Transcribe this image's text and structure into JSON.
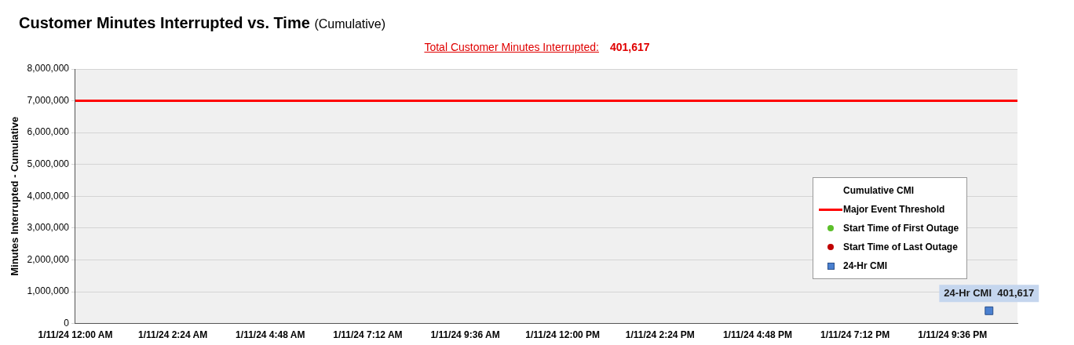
{
  "chart_data": {
    "type": "scatter",
    "title": "Customer Minutes Interrupted  vs. Time",
    "subtitle": "(Cumulative)",
    "annotations": [
      "Total Customer Minutes Interrupted:",
      "401,617"
    ],
    "ylabel": "Minutes Interrupted - Cumulative",
    "xlim": [
      "--01-11T00:00",
      "--01-11T23:12"
    ],
    "xticks": [
      {
        "value": "--01-11T00:00",
        "label": "1/11/24 12:00 AM"
      },
      {
        "value": "--01-11T02:24",
        "label": "1/11/24 2:24 AM"
      },
      {
        "value": "--01-11T04:48",
        "label": "1/11/24 4:48 AM"
      },
      {
        "value": "--01-11T07:12",
        "label": "1/11/24 7:12 AM"
      },
      {
        "value": "--01-11T09:36",
        "label": "1/11/24 9:36 AM"
      },
      {
        "value": "--01-11T12:00",
        "label": "1/11/24 12:00 PM"
      },
      {
        "value": "--01-11T14:24",
        "label": "1/11/24 2:24 PM"
      },
      {
        "value": "--01-11T16:48",
        "label": "1/11/24 4:48 PM"
      },
      {
        "value": "--01-11T19:12",
        "label": "1/11/24 7:12 PM"
      },
      {
        "value": "--01-11T21:36",
        "label": "1/11/24 9:36 PM"
      }
    ],
    "ylim": [
      0,
      8000000
    ],
    "yticks": [
      0,
      {
        "value": 1000000,
        "label": "1,000,000"
      },
      {
        "value": 2000000,
        "label": "2,000,000"
      },
      {
        "value": 3000000,
        "label": "3,000,000"
      },
      {
        "value": 4000000,
        "label": "4,000,000"
      },
      {
        "value": 5000000,
        "label": "5,000,000"
      },
      {
        "value": 6000000,
        "label": "6,000,000"
      },
      {
        "value": 7000000,
        "label": "7,000,000"
      },
      {
        "value": 8000000,
        "label": "8,000,000"
      }
    ],
    "grid": "y",
    "legend": "right",
    "series": [
      {
        "name": "Cumulative CMI",
        "type": "line"
      },
      {
        "name": "Major Event Threshold",
        "type": "line",
        "color": "#ff0000",
        "marker": "none",
        "x": [
          "--01-11T00:00",
          "--01-11T23:12"
        ],
        "values": [
          7000000,
          7000000
        ]
      },
      {
        "name": "Start Time of First Outage",
        "type": "scatter",
        "color": "#5cbf2a",
        "marker": "circle"
      },
      {
        "name": "Start Time of Last Outage",
        "type": "scatter",
        "color": "#c00000",
        "marker": "circle"
      },
      {
        "name": "24-Hr CMI",
        "type": "scatter",
        "color": "#4a80d0",
        "marker": "square",
        "x": [
          "--01-11T22:30"
        ],
        "values": [
          401617
        ],
        "value_labels": [
          "24-Hr CMI  401,617"
        ]
      }
    ]
  }
}
